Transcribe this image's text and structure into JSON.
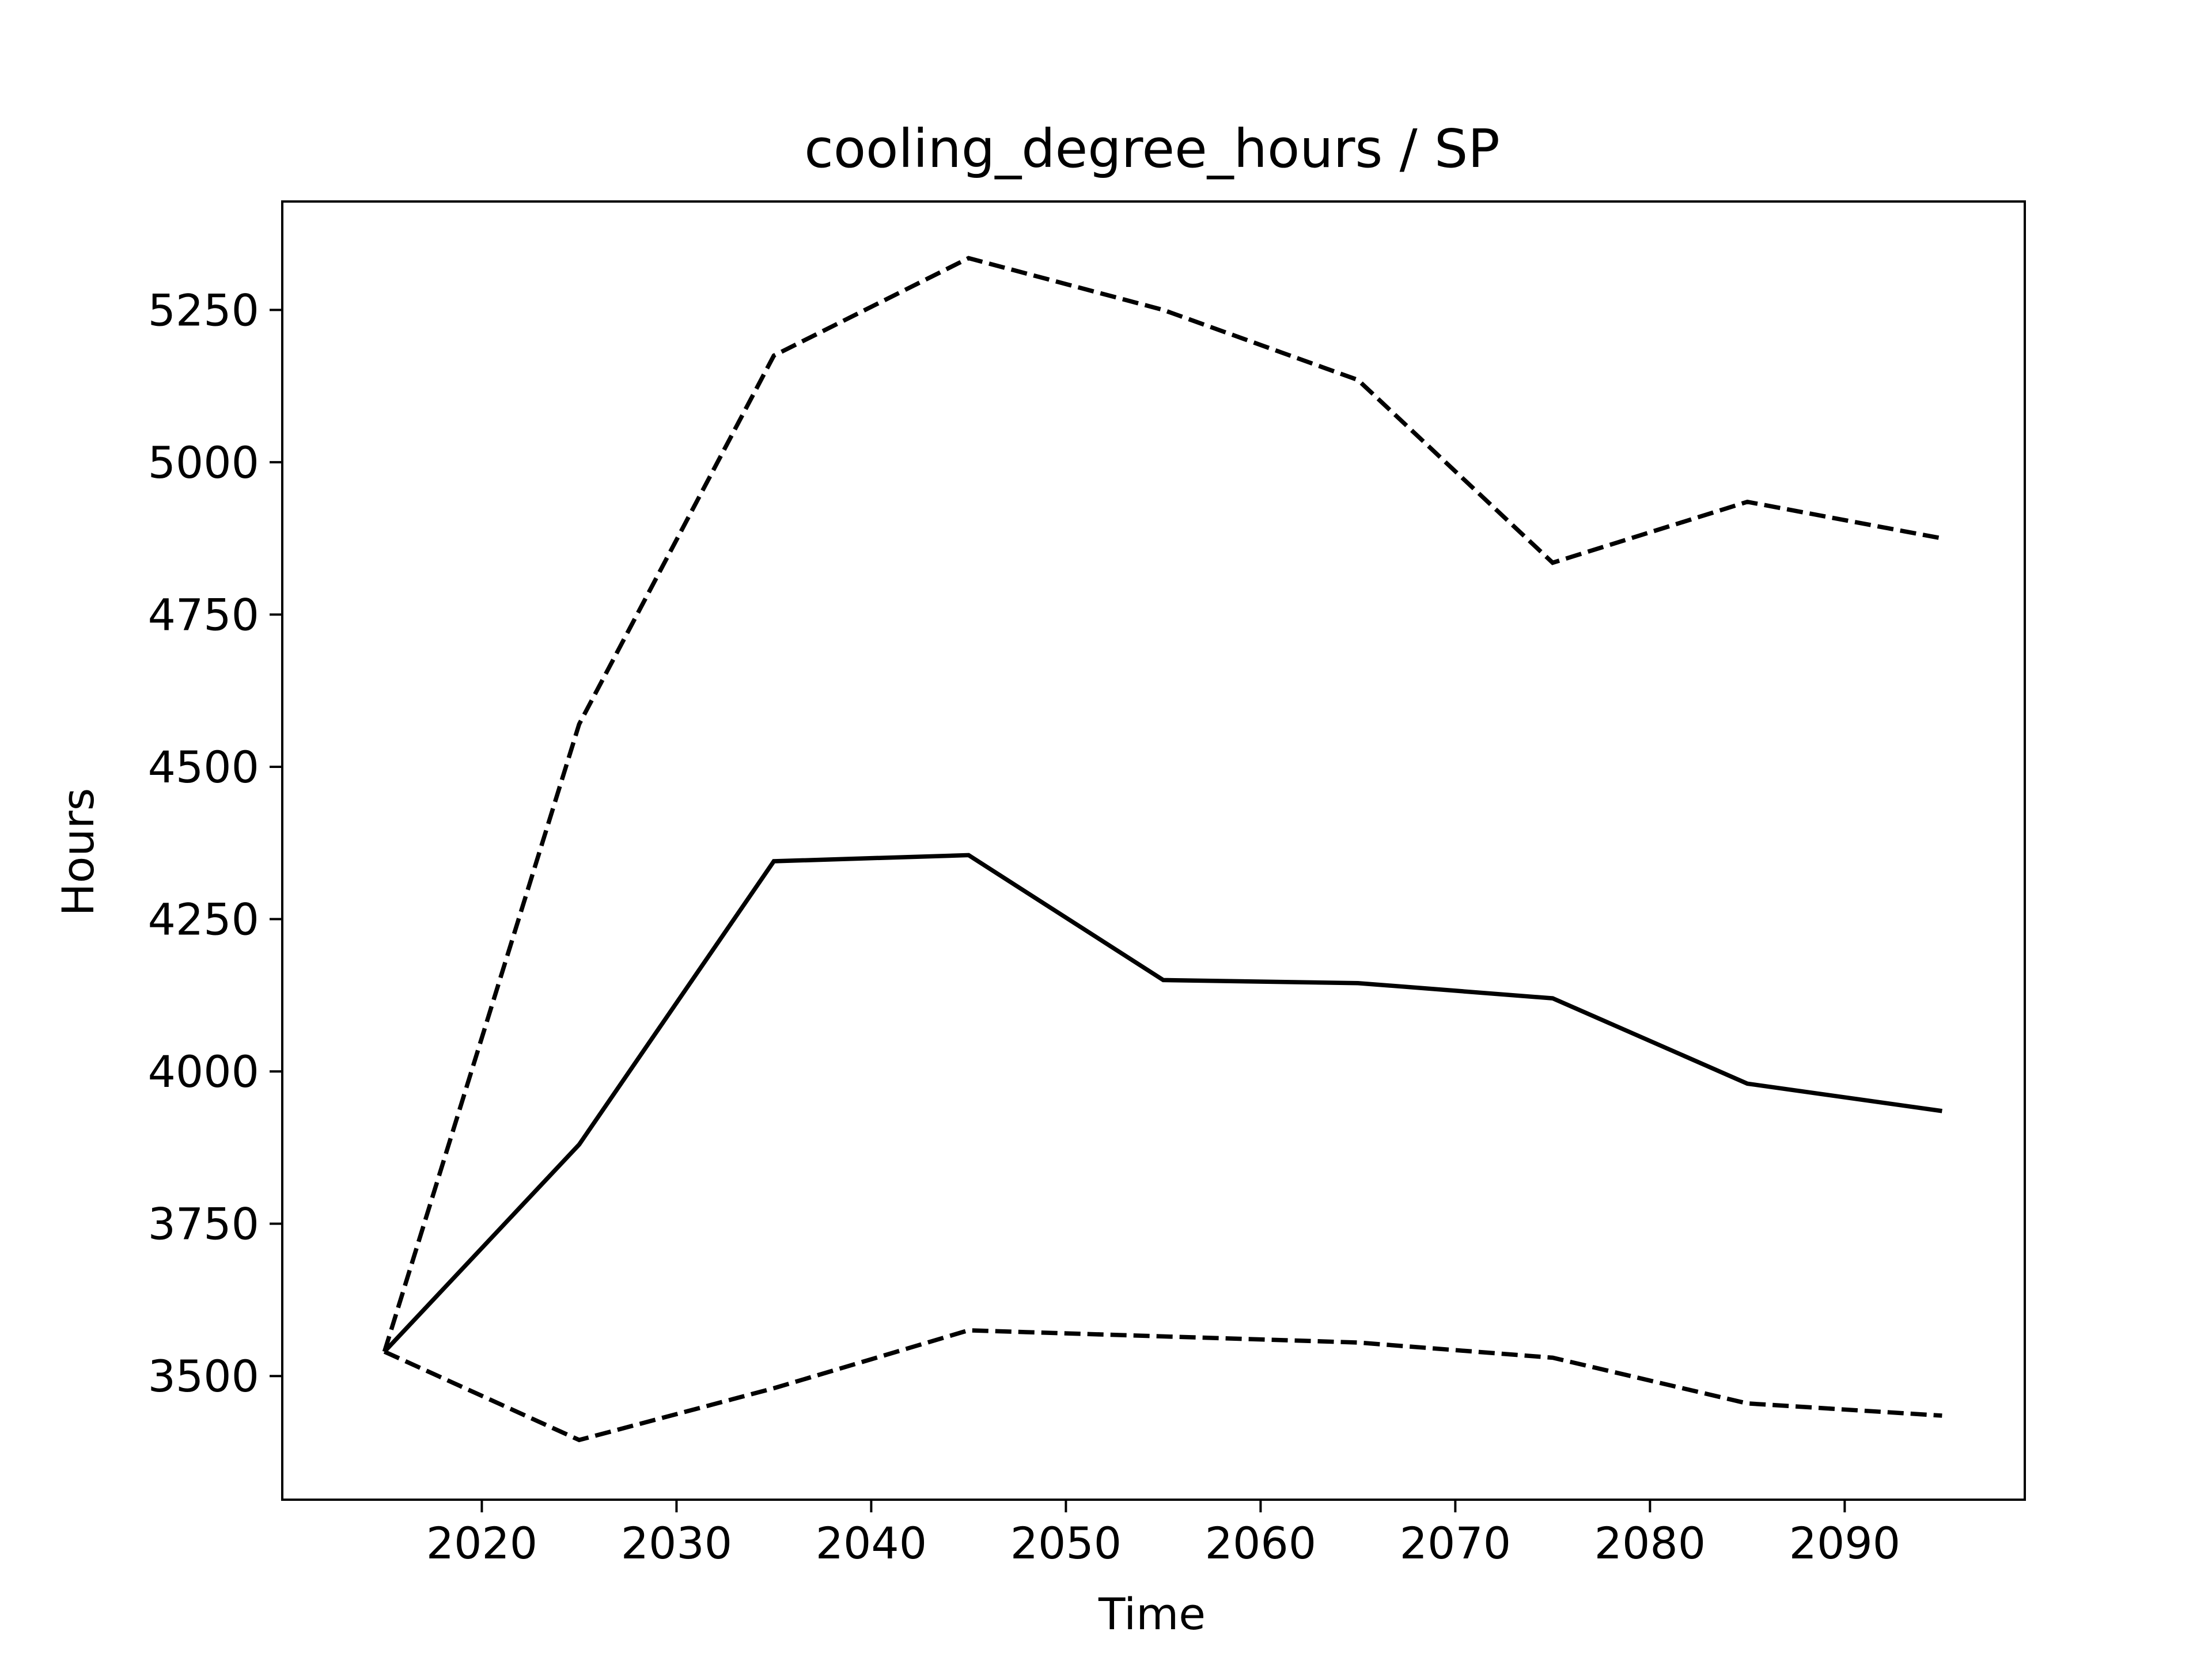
{
  "chart_data": {
    "type": "line",
    "title": "cooling_degree_hours / SP",
    "xlabel": "Time",
    "ylabel": "Hours",
    "x": [
      2015,
      2025,
      2035,
      2045,
      2055,
      2065,
      2075,
      2085,
      2095
    ],
    "series": [
      {
        "style": "solid",
        "color": "#000000",
        "values": [
          3540,
          3880,
          4345,
          4355,
          4150,
          4145,
          4120,
          3980,
          3935
        ]
      },
      {
        "style": "dashed",
        "color": "#000000",
        "values": [
          3540,
          4570,
          5175,
          5335,
          5250,
          5135,
          4835,
          4935,
          4875
        ]
      },
      {
        "style": "dashed",
        "color": "#000000",
        "values": [
          3540,
          3395,
          3480,
          3575,
          3565,
          3555,
          3530,
          3455,
          3435
        ]
      }
    ],
    "xticks": [
      2020,
      2030,
      2040,
      2050,
      2060,
      2070,
      2080,
      2090
    ],
    "yticks": [
      3500,
      3750,
      4000,
      4250,
      4500,
      4750,
      5000,
      5250
    ],
    "xlim": [
      2009.75,
      2099.25
    ],
    "ylim": [
      3297,
      5428
    ],
    "grid": false,
    "legend": "none"
  }
}
